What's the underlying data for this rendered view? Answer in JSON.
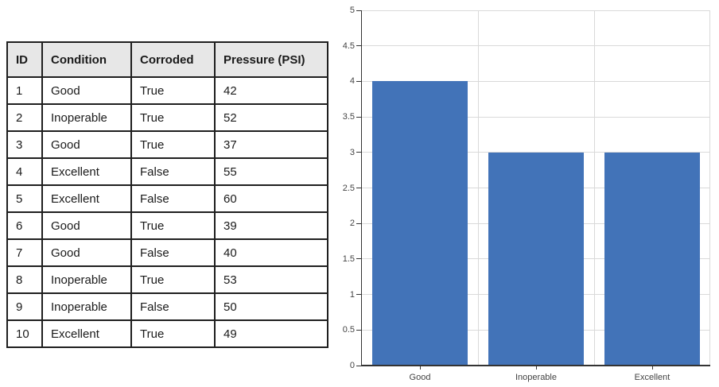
{
  "table": {
    "columns": [
      "ID",
      "Condition",
      "Corroded",
      "Pressure (PSI)"
    ],
    "rows": [
      [
        "1",
        "Good",
        "True",
        "42"
      ],
      [
        "2",
        "Inoperable",
        "True",
        "52"
      ],
      [
        "3",
        "Good",
        "True",
        "37"
      ],
      [
        "4",
        "Excellent",
        "False",
        "55"
      ],
      [
        "5",
        "Excellent",
        "False",
        "60"
      ],
      [
        "6",
        "Good",
        "True",
        "39"
      ],
      [
        "7",
        "Good",
        "False",
        "40"
      ],
      [
        "8",
        "Inoperable",
        "True",
        "53"
      ],
      [
        "9",
        "Inoperable",
        "False",
        "50"
      ],
      [
        "10",
        "Excellent",
        "True",
        "49"
      ]
    ]
  },
  "chart_data": {
    "type": "bar",
    "categories": [
      "Good",
      "Inoperable",
      "Excellent"
    ],
    "values": [
      4,
      3,
      3
    ],
    "title": "",
    "xlabel": "",
    "ylabel": "",
    "ylim": [
      0,
      5
    ],
    "ytick_step": 0.5,
    "ytick_labels": [
      "0",
      "0.5",
      "1",
      "1.5",
      "2",
      "2.5",
      "3",
      "3.5",
      "4",
      "4.5",
      "5"
    ],
    "grid": true,
    "legend_position": "none",
    "bar_color": "#4273B8",
    "gridline_color": "#D9D9D9",
    "axis_color": "#333333",
    "tick_label_color": "#444444"
  }
}
